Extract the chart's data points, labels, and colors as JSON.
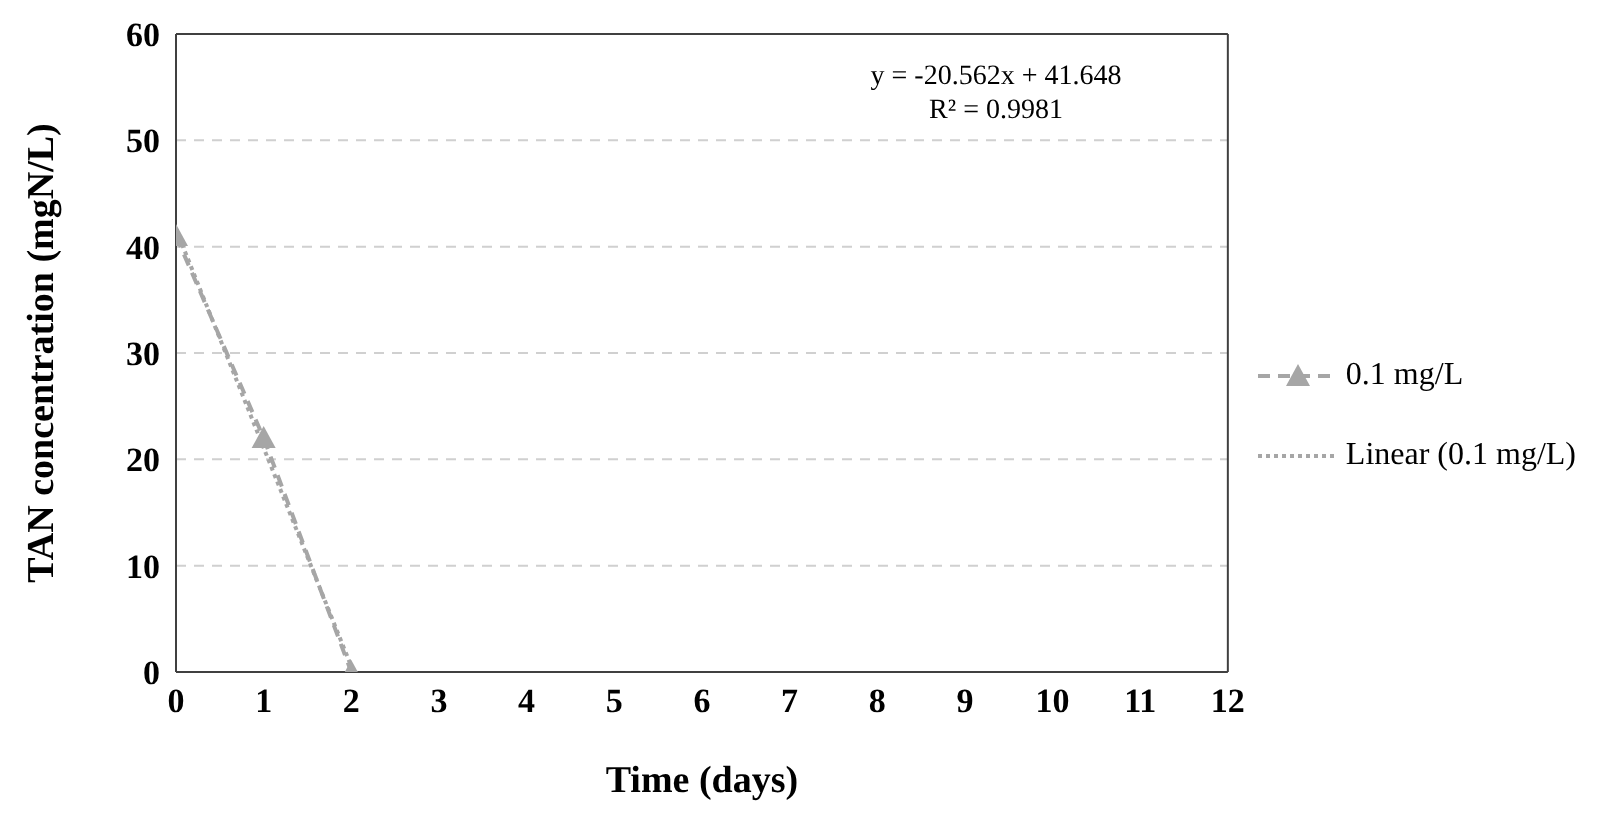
{
  "chart_data": {
    "type": "line",
    "xlabel": "Time (days)",
    "ylabel": "TAN concentration (mgN/L)",
    "x": [
      0,
      1,
      2
    ],
    "series": [
      {
        "name": "0.1 mg/L",
        "color": "#a6a6a6",
        "values": [
          41,
          22,
          0
        ],
        "marker": "triangle",
        "line_style": "dashed"
      },
      {
        "name": "Linear (0.1 mg/L)",
        "color": "#a6a6a6",
        "type": "line",
        "x": [
          0,
          2
        ],
        "values": [
          41.648,
          0.524
        ],
        "marker": "none",
        "line_style": "dotted"
      }
    ],
    "xlim": [
      0,
      12
    ],
    "xticks": [
      0,
      1,
      2,
      3,
      4,
      5,
      6,
      7,
      8,
      9,
      10,
      11,
      12
    ],
    "ylim": [
      0,
      60
    ],
    "yticks": [
      0,
      10,
      20,
      30,
      40,
      50,
      60
    ],
    "grid": "y",
    "legend": "right",
    "annotations": [
      "y = -20.562x + 41.648",
      "R² = 0.9981"
    ]
  }
}
